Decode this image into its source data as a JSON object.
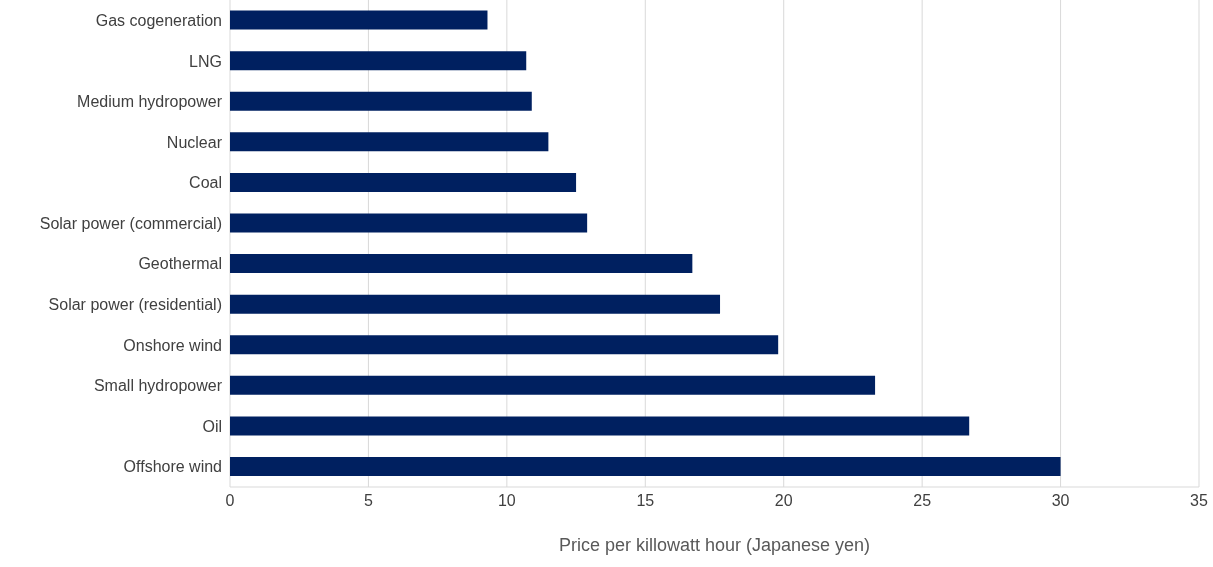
{
  "chart_data": {
    "type": "bar",
    "orientation": "horizontal",
    "xlabel": "Price per killowatt hour (Japanese yen)",
    "categories": [
      "Gas cogeneration",
      "LNG",
      "Medium hydropower",
      "Nuclear",
      "Coal",
      "Solar power (commercial)",
      "Geothermal",
      "Solar power (residential)",
      "Onshore wind",
      "Small hydropower",
      "Oil",
      "Offshore wind"
    ],
    "values": [
      9.3,
      10.7,
      10.9,
      11.5,
      12.5,
      12.9,
      16.7,
      17.7,
      19.8,
      23.3,
      26.7,
      30
    ],
    "color": "#002060",
    "xlim": [
      0,
      35
    ],
    "xticks": [
      0,
      5,
      10,
      15,
      20,
      25,
      30,
      35
    ],
    "grid": "x"
  }
}
